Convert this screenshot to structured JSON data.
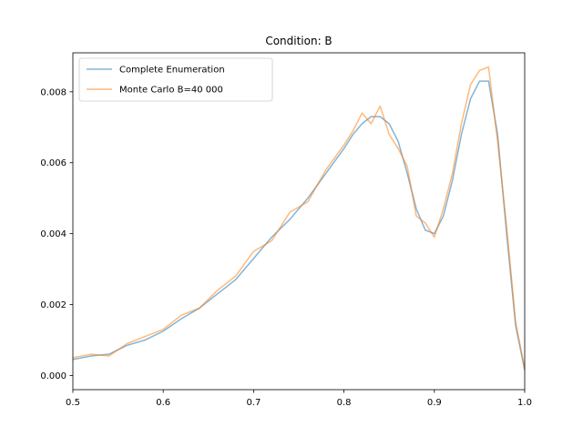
{
  "chart_data": {
    "type": "line",
    "title": "Condition: B",
    "xlabel": "",
    "ylabel": "",
    "xlim": [
      0.5,
      1.0
    ],
    "ylim": [
      -0.0004,
      0.0091
    ],
    "xticks": [
      0.5,
      0.6,
      0.7,
      0.8,
      0.9,
      1.0
    ],
    "xtick_labels": [
      "0.5",
      "0.6",
      "0.7",
      "0.8",
      "0.9",
      "1.0"
    ],
    "yticks": [
      0.0,
      0.002,
      0.004,
      0.006,
      0.008
    ],
    "ytick_labels": [
      "0.000",
      "0.002",
      "0.004",
      "0.006",
      "0.008"
    ],
    "grid": false,
    "legend_position": "top-left",
    "series": [
      {
        "name": "Complete Enumeration",
        "color": "#1f77b4",
        "x": [
          0.5,
          0.52,
          0.54,
          0.56,
          0.58,
          0.6,
          0.62,
          0.64,
          0.66,
          0.68,
          0.7,
          0.72,
          0.74,
          0.76,
          0.78,
          0.8,
          0.81,
          0.82,
          0.83,
          0.84,
          0.85,
          0.86,
          0.87,
          0.88,
          0.89,
          0.9,
          0.91,
          0.92,
          0.93,
          0.94,
          0.95,
          0.96,
          0.97,
          0.98,
          0.99,
          1.0
        ],
        "y": [
          0.00045,
          0.00055,
          0.0006,
          0.00085,
          0.001,
          0.00125,
          0.0016,
          0.0019,
          0.0023,
          0.0027,
          0.0033,
          0.0039,
          0.0044,
          0.005,
          0.0057,
          0.0064,
          0.0068,
          0.0071,
          0.0073,
          0.0073,
          0.0071,
          0.0066,
          0.0057,
          0.0047,
          0.0041,
          0.004,
          0.0045,
          0.0055,
          0.0068,
          0.0078,
          0.0083,
          0.0083,
          0.0068,
          0.004,
          0.0014,
          0.00015
        ]
      },
      {
        "name": "Monte Carlo B=40 000",
        "color": "#ff7f0e",
        "x": [
          0.5,
          0.52,
          0.54,
          0.56,
          0.58,
          0.6,
          0.62,
          0.64,
          0.66,
          0.68,
          0.7,
          0.72,
          0.74,
          0.76,
          0.78,
          0.8,
          0.81,
          0.82,
          0.83,
          0.84,
          0.85,
          0.86,
          0.87,
          0.88,
          0.89,
          0.9,
          0.91,
          0.92,
          0.93,
          0.94,
          0.95,
          0.96,
          0.97,
          0.98,
          0.99,
          1.0
        ],
        "y": [
          0.0005,
          0.0006,
          0.00055,
          0.0009,
          0.0011,
          0.0013,
          0.0017,
          0.0019,
          0.0024,
          0.0028,
          0.0035,
          0.0038,
          0.0046,
          0.0049,
          0.0058,
          0.0065,
          0.0069,
          0.0074,
          0.0071,
          0.0076,
          0.0068,
          0.0064,
          0.0059,
          0.0045,
          0.0043,
          0.0039,
          0.0047,
          0.0057,
          0.0071,
          0.0082,
          0.0086,
          0.0087,
          0.0066,
          0.0042,
          0.0015,
          0.0002
        ]
      }
    ]
  }
}
